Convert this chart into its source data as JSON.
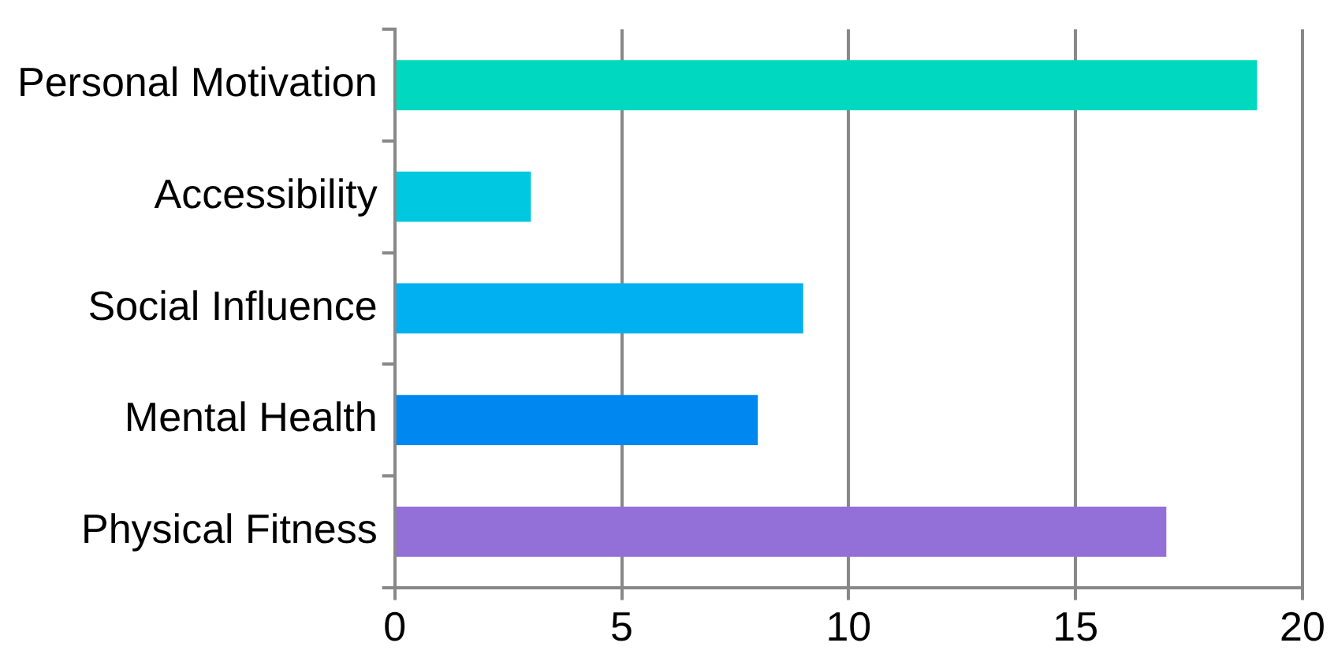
{
  "chart_data": {
    "type": "bar",
    "orientation": "horizontal",
    "categories": [
      "Personal Motivation",
      "Accessibility",
      "Social Influence",
      "Mental Health",
      "Physical Fitness"
    ],
    "values": [
      19,
      3,
      9,
      8,
      17
    ],
    "colors": [
      "#00d9bf",
      "#00c8e0",
      "#00b0f0",
      "#0088f0",
      "#9370d8"
    ],
    "xlim": [
      0,
      20
    ],
    "xticks": [
      0,
      5,
      10,
      15,
      20
    ],
    "grid": "x",
    "legend": false
  }
}
